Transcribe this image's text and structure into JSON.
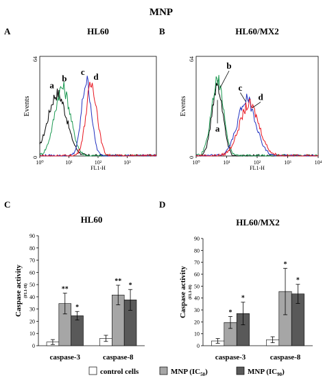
{
  "figure_title": "MNP",
  "panel_letters": [
    "A",
    "B",
    "C",
    "D"
  ],
  "legend": [
    {
      "label": "control cells",
      "color": "#ffffff"
    },
    {
      "label": "MNP (IC",
      "sub": "50",
      "tail": ")",
      "color": "#a6a6a6"
    },
    {
      "label": "MNP (IC",
      "sub": "90",
      "tail": ")",
      "color": "#595959"
    }
  ],
  "chart_data": [
    {
      "type": "line",
      "panel": "A",
      "title": "HL60",
      "xlabel": "FL1-H",
      "ylabel": "Events",
      "x_scale": "log",
      "xlim": [
        1,
        10000
      ],
      "x_ticks": [
        "10⁰",
        "10¹",
        "10²",
        "10³"
      ],
      "y_ticks": [
        "0",
        "64"
      ],
      "ylim": [
        0,
        64
      ],
      "series": [
        {
          "name": "a",
          "color": "#000000",
          "peak_x": 4,
          "peak_y": 40,
          "width": 0.32
        },
        {
          "name": "b",
          "color": "#1a9850",
          "peak_x": 6,
          "peak_y": 44,
          "width": 0.27
        },
        {
          "name": "c",
          "color": "#1f2fbf",
          "peak_x": 40,
          "peak_y": 48,
          "width": 0.17
        },
        {
          "name": "d",
          "color": "#e8121c",
          "peak_x": 60,
          "peak_y": 46,
          "width": 0.19
        }
      ]
    },
    {
      "type": "line",
      "panel": "B",
      "title": "HL60/MX2",
      "xlabel": "FL1-H",
      "ylabel": "Events",
      "x_scale": "log",
      "xlim": [
        1,
        10000
      ],
      "x_ticks": [
        "10⁰",
        "10¹",
        "10²",
        "10³",
        "10⁴"
      ],
      "y_ticks": [
        "0",
        "64"
      ],
      "ylim": [
        0,
        64
      ],
      "series": [
        {
          "name": "a",
          "color": "#000000",
          "peak_x": 5,
          "peak_y": 46,
          "width": 0.18
        },
        {
          "name": "b",
          "color": "#1a9850",
          "peak_x": 5,
          "peak_y": 48,
          "width": 0.2
        },
        {
          "name": "c",
          "color": "#1f2fbf",
          "peak_x": 45,
          "peak_y": 36,
          "width": 0.3
        },
        {
          "name": "d",
          "color": "#e8121c",
          "peak_x": 55,
          "peak_y": 33,
          "width": 0.32
        }
      ]
    },
    {
      "type": "bar",
      "panel": "C",
      "title": "HL60",
      "ylabel": "Caspase activity",
      "ylabel_sub": "(FL1-H)",
      "ylim": [
        0,
        90
      ],
      "y_ticks": [
        0,
        10,
        20,
        30,
        40,
        50,
        60,
        70,
        80,
        90
      ],
      "categories": [
        "caspase-3",
        "caspase-8"
      ],
      "series": [
        {
          "values": [
            3,
            6
          ],
          "errors": [
            2,
            2.5
          ],
          "color": "#ffffff"
        },
        {
          "values": [
            34.5,
            41.5
          ],
          "errors": [
            8.5,
            8
          ],
          "color": "#a6a6a6"
        },
        {
          "values": [
            24.5,
            37.5
          ],
          "errors": [
            3.5,
            8.5
          ],
          "color": "#595959"
        }
      ],
      "annotations": [
        [
          "",
          ""
        ],
        [
          "**",
          "**"
        ],
        [
          "*",
          "*"
        ]
      ]
    },
    {
      "type": "bar",
      "panel": "D",
      "title": "HL60/MX2",
      "ylabel": "Caspase activity",
      "ylabel_sub": "(FL1-H)",
      "ylim": [
        0,
        90
      ],
      "y_ticks": [
        0,
        10,
        20,
        30,
        40,
        50,
        60,
        70,
        80,
        90
      ],
      "categories": [
        "caspase-3",
        "caspase-8"
      ],
      "series": [
        {
          "values": [
            4,
            5
          ],
          "errors": [
            2,
            2.5
          ],
          "color": "#ffffff"
        },
        {
          "values": [
            19.5,
            45.5
          ],
          "errors": [
            5,
            19.5
          ],
          "color": "#a6a6a6"
        },
        {
          "values": [
            27,
            43.5
          ],
          "errors": [
            9.5,
            8
          ],
          "color": "#595959"
        }
      ],
      "annotations": [
        [
          "",
          ""
        ],
        [
          "*",
          "*"
        ],
        [
          "*",
          "*"
        ]
      ]
    }
  ]
}
